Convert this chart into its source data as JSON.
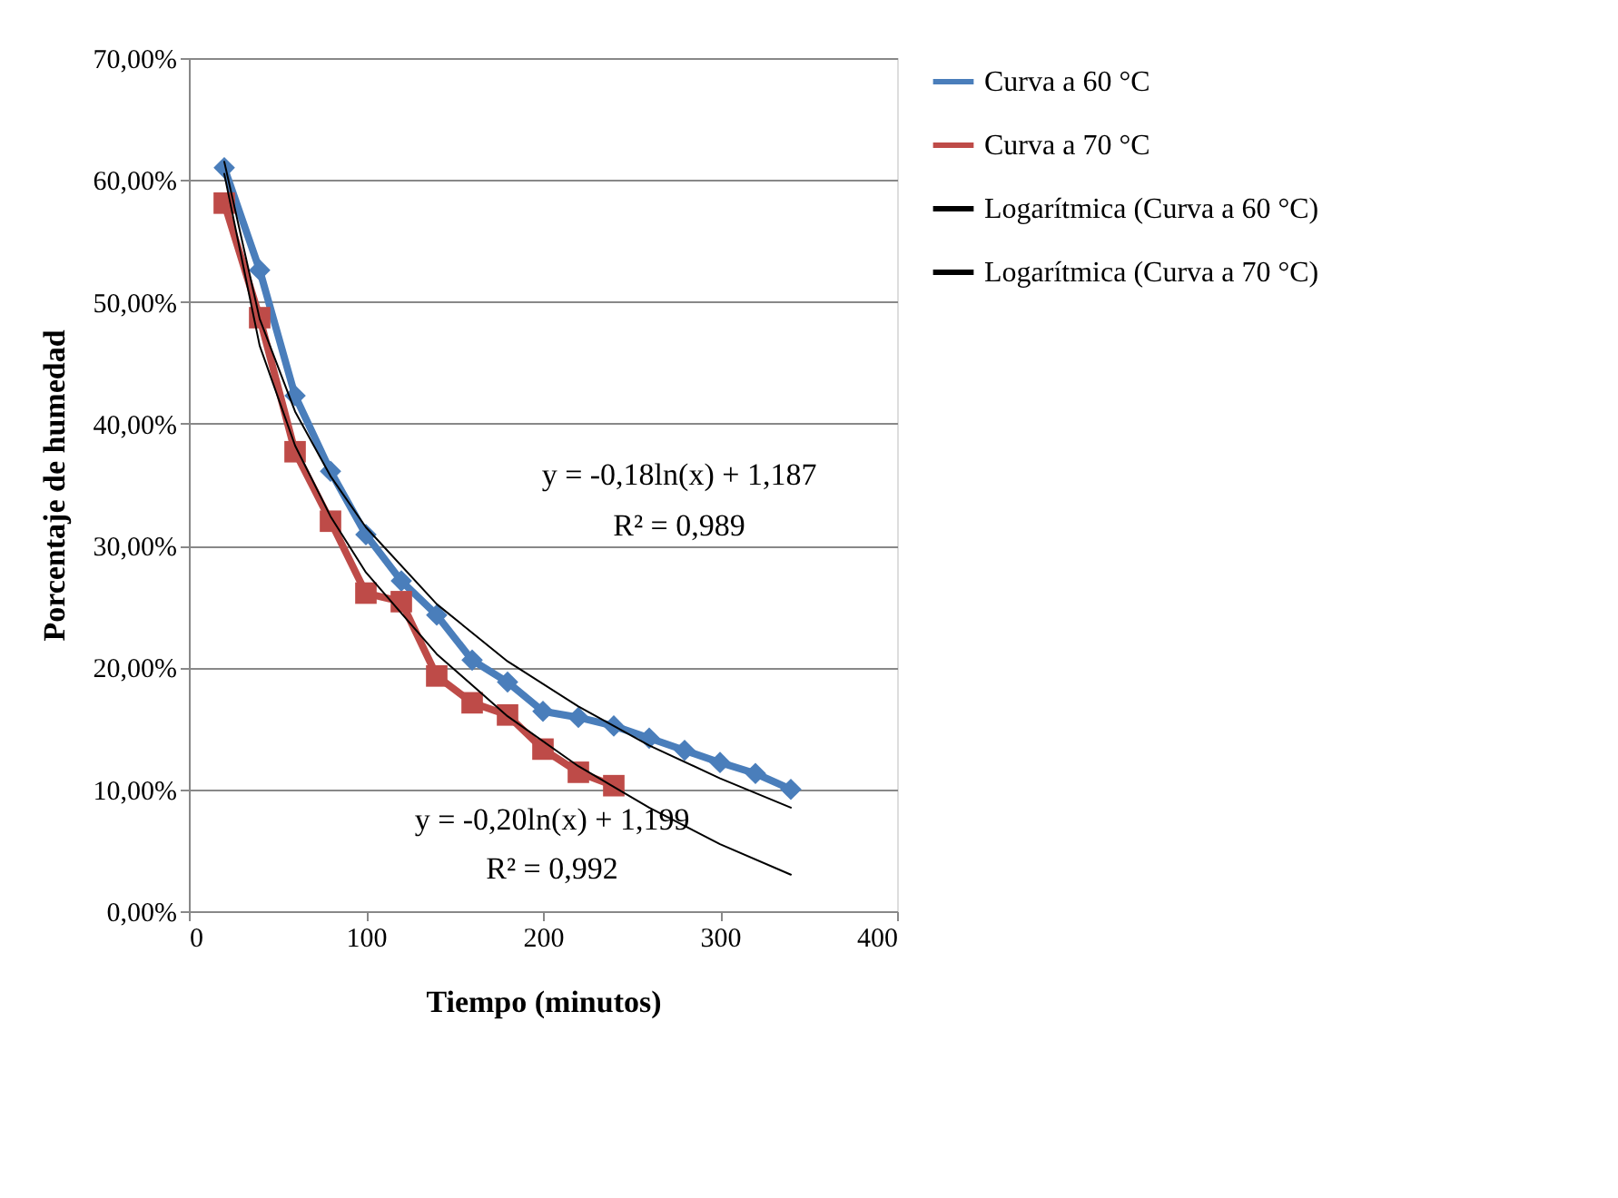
{
  "chart_data": {
    "type": "line",
    "xlabel": "Tiempo (minutos)",
    "ylabel": "Porcentaje de humedad",
    "xlim": [
      0,
      400
    ],
    "xticks": [
      0,
      100,
      200,
      300,
      400
    ],
    "ylim": [
      0,
      70
    ],
    "yticks": [
      {
        "value": 0,
        "label": "0,00%"
      },
      {
        "value": 10,
        "label": "10,00%"
      },
      {
        "value": 20,
        "label": "20,00%"
      },
      {
        "value": 30,
        "label": "30,00%"
      },
      {
        "value": 40,
        "label": "40,00%"
      },
      {
        "value": 50,
        "label": "50,00%"
      },
      {
        "value": 60,
        "label": "60,00%"
      },
      {
        "value": 70,
        "label": "70,00%"
      }
    ],
    "grid": "y",
    "legend": "right",
    "series": [
      {
        "name": "Curva a 60 °C",
        "color": "#4a7ebb",
        "marker": "diamond",
        "x": [
          20,
          40,
          60,
          80,
          100,
          120,
          140,
          160,
          180,
          200,
          220,
          240,
          260,
          280,
          300,
          320,
          340
        ],
        "values": [
          61.0,
          52.6,
          42.3,
          36.1,
          30.9,
          27.1,
          24.3,
          20.6,
          18.8,
          16.4,
          15.9,
          15.2,
          14.2,
          13.2,
          12.2,
          11.3,
          10.0
        ]
      },
      {
        "name": "Curva a 70 °C",
        "color": "#be4b48",
        "marker": "square",
        "x": [
          20,
          40,
          60,
          80,
          100,
          120,
          140,
          160,
          180,
          200,
          220,
          240
        ],
        "values": [
          58.1,
          48.7,
          37.7,
          32.0,
          26.1,
          25.4,
          19.3,
          17.1,
          16.1,
          13.3,
          11.4,
          10.3
        ]
      },
      {
        "name": "Logarítmica (Curva a 60 °C)",
        "color": "#000000",
        "marker": "none",
        "x": [
          20,
          40,
          60,
          80,
          100,
          140,
          180,
          220,
          260,
          300,
          340
        ],
        "values": [
          61.5,
          48.6,
          41.0,
          35.7,
          31.5,
          25.2,
          20.5,
          16.8,
          13.6,
          10.9,
          8.5
        ]
      },
      {
        "name": "Logarítmica (Curva a 70 °C)",
        "color": "#000000",
        "marker": "none",
        "x": [
          20,
          40,
          60,
          80,
          100,
          140,
          180,
          220,
          260,
          300,
          340
        ],
        "values": [
          60.5,
          46.4,
          38.2,
          32.4,
          27.8,
          21.1,
          16.0,
          11.9,
          8.5,
          5.5,
          3.0
        ]
      }
    ],
    "annotations": [
      "y = -0,18ln(x) + 1,187",
      "R² = 0,989",
      "y = -0,20ln(x) + 1,199",
      "R² = 0,992"
    ]
  }
}
